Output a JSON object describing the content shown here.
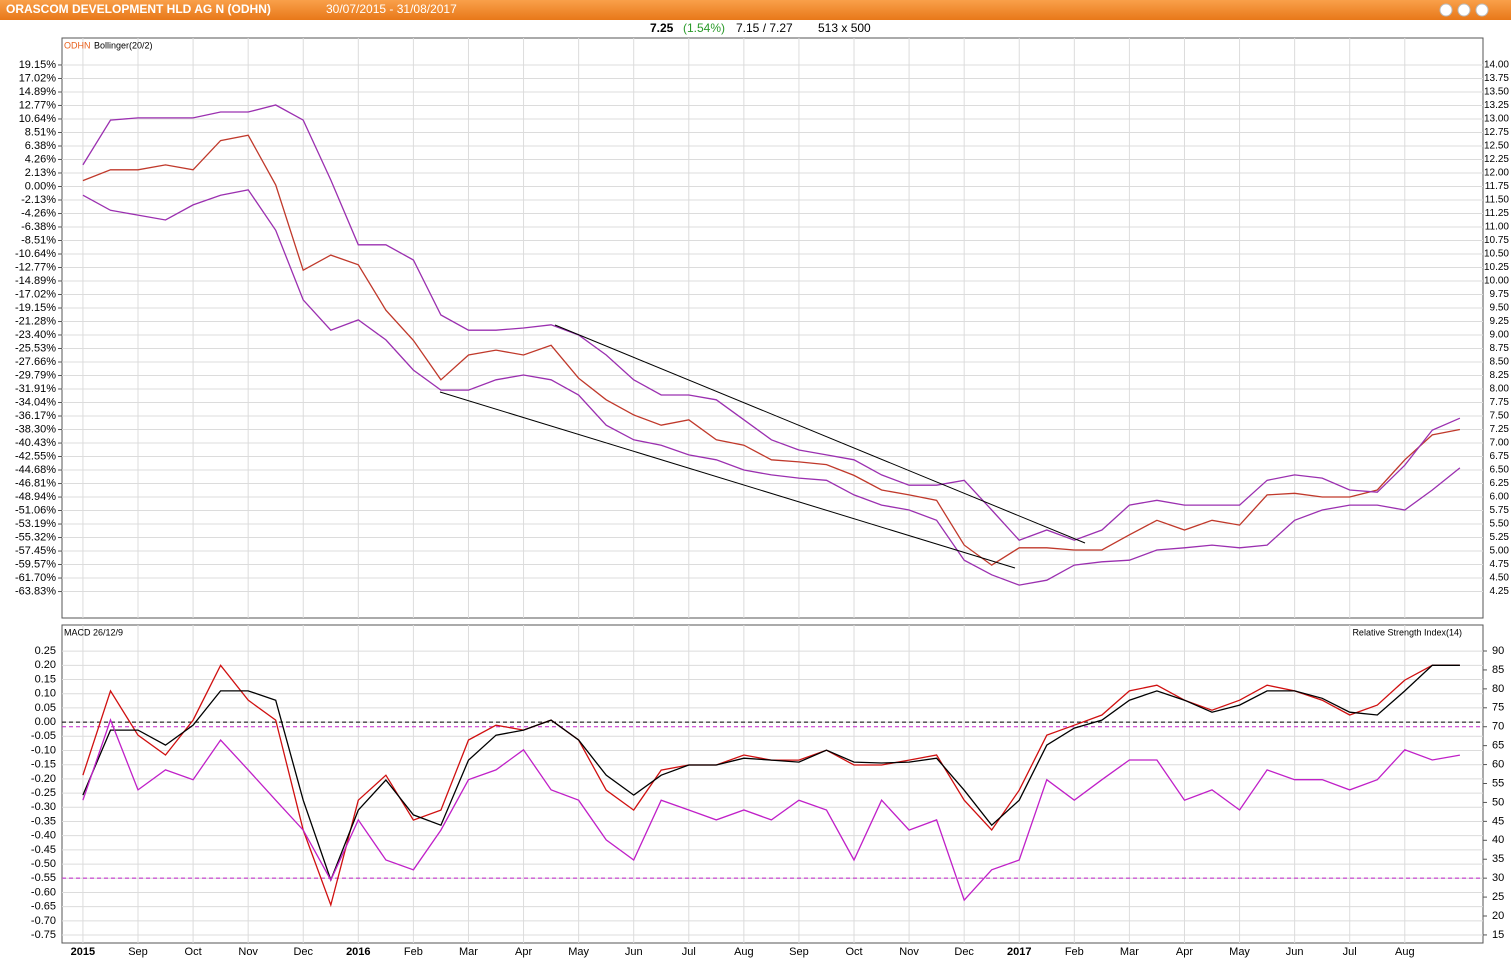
{
  "header": {
    "title": "ORASCOM DEVELOPMENT HLD AG N (ODHN)",
    "range": "30/07/2015 - 31/08/2017"
  },
  "quote": {
    "last": "7.25",
    "change": "(1.54%)",
    "low_high": "7.15 / 7.27",
    "size": "513 x 500"
  },
  "chart_data": [
    {
      "type": "line",
      "label": "ODHN",
      "indicator": "Bollinger(20/2)",
      "grid": true,
      "xlim": [
        -0.38,
        25.42
      ],
      "x": [
        0,
        0.5,
        1,
        1.5,
        2,
        2.5,
        3,
        3.5,
        4,
        4.5,
        5,
        5.5,
        6,
        6.5,
        7,
        7.5,
        8,
        8.5,
        9,
        9.5,
        10,
        10.5,
        11,
        11.5,
        12,
        12.5,
        13,
        13.5,
        14,
        14.5,
        15,
        15.5,
        16,
        16.5,
        17,
        17.5,
        18,
        18.5,
        19,
        19.5,
        20,
        20.5,
        21,
        21.5,
        22,
        22.5,
        23,
        23.5,
        24,
        24.5,
        25
      ],
      "ylim": [
        3.76,
        14.5
      ],
      "yticks": [
        {
          "value": 14,
          "label": "14.00"
        },
        13.75,
        {
          "value": 13.5,
          "label": "13.50"
        },
        13.25,
        {
          "value": 13,
          "label": "13.00"
        },
        12.75,
        {
          "value": 12.5,
          "label": "12.50"
        },
        12.25,
        {
          "value": 12,
          "label": "12.00"
        },
        11.75,
        {
          "value": 11.5,
          "label": "11.50"
        },
        11.25,
        {
          "value": 11,
          "label": "11.00"
        },
        10.75,
        {
          "value": 10.5,
          "label": "10.50"
        },
        10.25,
        {
          "value": 10,
          "label": "10.00"
        },
        9.75,
        {
          "value": 9.5,
          "label": "9.50"
        },
        9.25,
        {
          "value": 9,
          "label": "9.00"
        },
        8.75,
        {
          "value": 8.5,
          "label": "8.50"
        },
        8.25,
        {
          "value": 8,
          "label": "8.00"
        },
        7.75,
        {
          "value": 7.5,
          "label": "7.50"
        },
        7.25,
        {
          "value": 7,
          "label": "7.00"
        },
        6.75,
        {
          "value": 6.5,
          "label": "6.50"
        },
        6.25,
        {
          "value": 6,
          "label": "6.00"
        },
        5.75,
        {
          "value": 5.5,
          "label": "5.50"
        },
        5.25,
        {
          "value": 5,
          "label": "5.00"
        },
        4.75,
        {
          "value": 4.5,
          "label": "4.50"
        },
        4.25
      ],
      "y2lim": [
        -68.0,
        23.4
      ],
      "y2ticks": [
        {
          "value": 19.15,
          "label": "19.15%"
        },
        {
          "value": 17.02,
          "label": "17.02%"
        },
        {
          "value": 14.89,
          "label": "14.89%"
        },
        {
          "value": 12.77,
          "label": "12.77%"
        },
        {
          "value": 10.64,
          "label": "10.64%"
        },
        {
          "value": 8.51,
          "label": "8.51%"
        },
        {
          "value": 6.38,
          "label": "6.38%"
        },
        {
          "value": 4.26,
          "label": "4.26%"
        },
        {
          "value": 2.13,
          "label": "2.13%"
        },
        {
          "value": 0,
          "label": "0.00%"
        },
        {
          "value": -2.13,
          "label": "-2.13%"
        },
        {
          "value": -4.26,
          "label": "-4.26%"
        },
        {
          "value": -6.38,
          "label": "-6.38%"
        },
        {
          "value": -8.51,
          "label": "-8.51%"
        },
        {
          "value": -10.64,
          "label": "-10.64%"
        },
        {
          "value": -12.77,
          "label": "-12.77%"
        },
        {
          "value": -14.89,
          "label": "-14.89%"
        },
        {
          "value": -17.02,
          "label": "-17.02%"
        },
        {
          "value": -19.15,
          "label": "-19.15%"
        },
        {
          "value": -21.28,
          "label": "-21.28%"
        },
        {
          "value": -23.4,
          "label": "-23.40%"
        },
        {
          "value": -25.53,
          "label": "-25.53%"
        },
        {
          "value": -27.66,
          "label": "-27.66%"
        },
        {
          "value": -29.79,
          "label": "-29.79%"
        },
        {
          "value": -31.91,
          "label": "-31.91%"
        },
        {
          "value": -34.04,
          "label": "-34.04%"
        },
        {
          "value": -36.17,
          "label": "-36.17%"
        },
        {
          "value": -38.3,
          "label": "-38.30%"
        },
        {
          "value": -40.43,
          "label": "-40.43%"
        },
        {
          "value": -42.55,
          "label": "-42.55%"
        },
        {
          "value": -44.68,
          "label": "-44.68%"
        },
        {
          "value": -46.81,
          "label": "-46.81%"
        },
        {
          "value": -48.94,
          "label": "-48.94%"
        },
        {
          "value": -51.06,
          "label": "-51.06%"
        },
        {
          "value": -53.19,
          "label": "-53.19%"
        },
        {
          "value": -55.32,
          "label": "-55.32%"
        },
        {
          "value": -57.45,
          "label": "-57.45%"
        },
        {
          "value": -59.57,
          "label": "-59.57%"
        },
        {
          "value": -61.7,
          "label": "-61.70%"
        },
        {
          "value": -63.83,
          "label": "-63.83%"
        }
      ],
      "series": [
        {
          "color": "#c0392b",
          "values": [
            11.86,
            12.06,
            12.06,
            12.15,
            12.06,
            12.6,
            12.7,
            11.78,
            10.2,
            10.48,
            10.3,
            9.46,
            8.9,
            8.17,
            8.63,
            8.72,
            8.63,
            8.81,
            8.2,
            7.8,
            7.52,
            7.33,
            7.43,
            7.06,
            6.96,
            6.69,
            6.65,
            6.6,
            6.4,
            6.13,
            6.04,
            5.94,
            5.11,
            4.74,
            5.06,
            5.06,
            5.02,
            5.02,
            5.3,
            5.57,
            5.39,
            5.57,
            5.48,
            6.04,
            6.07,
            6.0,
            6.0,
            6.13,
            6.69,
            7.15,
            7.25
          ]
        },
        {
          "color": "#9b30b0",
          "values": [
            12.15,
            12.98,
            13.02,
            13.02,
            13.02,
            13.13,
            13.13,
            13.26,
            12.98,
            11.87,
            10.67,
            10.67,
            10.39,
            9.37,
            9.09,
            9.09,
            9.13,
            9.19,
            9.0,
            8.63,
            8.17,
            7.89,
            7.89,
            7.8,
            7.43,
            7.06,
            6.87,
            6.78,
            6.69,
            6.41,
            6.22,
            6.22,
            6.31,
            5.76,
            5.2,
            5.39,
            5.2,
            5.39,
            5.85,
            5.94,
            5.85,
            5.85,
            5.85,
            6.31,
            6.41,
            6.35,
            6.13,
            6.09,
            6.59,
            7.24,
            7.46
          ]
        },
        {
          "color": "#9b30b0",
          "values": [
            11.59,
            11.31,
            11.22,
            11.13,
            11.41,
            11.59,
            11.69,
            10.94,
            9.65,
            9.09,
            9.28,
            8.91,
            8.35,
            7.98,
            7.98,
            8.17,
            8.26,
            8.17,
            7.89,
            7.33,
            7.06,
            6.96,
            6.78,
            6.69,
            6.5,
            6.41,
            6.35,
            6.31,
            6.04,
            5.85,
            5.76,
            5.57,
            4.83,
            4.56,
            4.37,
            4.46,
            4.74,
            4.8,
            4.83,
            5.02,
            5.06,
            5.11,
            5.06,
            5.11,
            5.57,
            5.76,
            5.85,
            5.85,
            5.76,
            6.13,
            6.54
          ]
        }
      ]
    },
    {
      "type": "line",
      "label": "MACD 26/12/9",
      "label_right": "Relative Strength Index(14)",
      "grid": true,
      "xlim": [
        -0.38,
        25.42
      ],
      "xticks": [
        {
          "value": 0,
          "label": "2015"
        },
        {
          "value": 1,
          "label": "Sep"
        },
        {
          "value": 2,
          "label": "Oct"
        },
        {
          "value": 3,
          "label": "Nov"
        },
        {
          "value": 4,
          "label": "Dec"
        },
        {
          "value": 5,
          "label": "2016"
        },
        {
          "value": 6,
          "label": "Feb"
        },
        {
          "value": 7,
          "label": "Mar"
        },
        {
          "value": 8,
          "label": "Apr"
        },
        {
          "value": 9,
          "label": "May"
        },
        {
          "value": 10,
          "label": "Jun"
        },
        {
          "value": 11,
          "label": "Jul"
        },
        {
          "value": 12,
          "label": "Aug"
        },
        {
          "value": 13,
          "label": "Sep"
        },
        {
          "value": 14,
          "label": "Oct"
        },
        {
          "value": 15,
          "label": "Nov"
        },
        {
          "value": 16,
          "label": "Dec"
        },
        {
          "value": 17,
          "label": "2017"
        },
        {
          "value": 18,
          "label": "Feb"
        },
        {
          "value": 19,
          "label": "Mar"
        },
        {
          "value": 20,
          "label": "Apr"
        },
        {
          "value": 21,
          "label": "May"
        },
        {
          "value": 22,
          "label": "Jun"
        },
        {
          "value": 23,
          "label": "Jul"
        },
        {
          "value": 24,
          "label": "Aug"
        }
      ],
      "x": [
        0,
        0.5,
        1,
        1.5,
        2,
        2.5,
        3,
        3.5,
        4,
        4.5,
        5,
        5.5,
        6,
        6.5,
        7,
        7.5,
        8,
        8.5,
        9,
        9.5,
        10,
        10.5,
        11,
        11.5,
        12,
        12.5,
        13,
        13.5,
        14,
        14.5,
        15,
        15.5,
        16,
        16.5,
        17,
        17.5,
        18,
        18.5,
        19,
        19.5,
        20,
        20.5,
        21,
        21.5,
        22,
        22.5,
        23,
        23.5,
        24,
        24.5,
        25
      ],
      "ylim": [
        -0.778,
        0.342
      ],
      "yticks": [
        0.25,
        {
          "value": 0.2,
          "label": "0.20"
        },
        0.15,
        {
          "value": 0.1,
          "label": "0.10"
        },
        0.05,
        {
          "value": 0,
          "label": "0.00"
        },
        -0.05,
        {
          "value": -0.1,
          "label": "-0.10"
        },
        -0.15,
        {
          "value": -0.2,
          "label": "-0.20"
        },
        -0.25,
        {
          "value": -0.3,
          "label": "-0.30"
        },
        -0.35,
        {
          "value": -0.4,
          "label": "-0.40"
        },
        -0.45,
        {
          "value": -0.5,
          "label": "-0.50"
        },
        -0.55,
        {
          "value": -0.6,
          "label": "-0.60"
        },
        -0.65,
        {
          "value": -0.7,
          "label": "-0.70"
        },
        -0.75
      ],
      "y2lim": [
        12.87,
        96.87
      ],
      "y2ticks": [
        90,
        85,
        80,
        75,
        70,
        65,
        60,
        55,
        50,
        45,
        40,
        35,
        30,
        25,
        20,
        15
      ],
      "reference_lines": [
        0
      ],
      "y2_reference_lines": [
        70,
        30
      ],
      "series": [
        {
          "color": "#d01010",
          "values": [
            -0.187,
            0.11,
            -0.046,
            -0.116,
            0.007,
            0.2,
            0.077,
            0.007,
            -0.38,
            -0.644,
            -0.275,
            -0.187,
            -0.345,
            -0.31,
            -0.063,
            -0.011,
            -0.028,
            0.007,
            -0.063,
            -0.24,
            -0.31,
            -0.169,
            -0.151,
            -0.151,
            -0.116,
            -0.134,
            -0.134,
            -0.099,
            -0.151,
            -0.151,
            -0.134,
            -0.116,
            -0.275,
            -0.38,
            -0.24,
            -0.046,
            -0.011,
            0.025,
            0.11,
            0.13,
            0.077,
            0.042,
            0.077,
            0.13,
            0.11,
            0.077,
            0.025,
            0.06,
            0.148,
            0.2,
            0.2
          ]
        },
        {
          "color": "#000000",
          "values": [
            -0.257,
            -0.028,
            -0.028,
            -0.081,
            -0.011,
            0.11,
            0.11,
            0.077,
            -0.275,
            -0.556,
            -0.31,
            -0.204,
            -0.327,
            -0.363,
            -0.134,
            -0.046,
            -0.028,
            0.007,
            -0.063,
            -0.187,
            -0.257,
            -0.187,
            -0.151,
            -0.151,
            -0.127,
            -0.134,
            -0.141,
            -0.099,
            -0.141,
            -0.144,
            -0.141,
            -0.127,
            -0.24,
            -0.363,
            -0.275,
            -0.081,
            -0.021,
            0.007,
            0.077,
            0.11,
            0.077,
            0.035,
            0.06,
            0.11,
            0.11,
            0.084,
            0.035,
            0.025,
            0.11,
            0.2,
            0.2
          ]
        },
        {
          "color": "#c020c8",
          "axis": "y2",
          "values": [
            50.6,
            71.8,
            53.3,
            58.6,
            56,
            66.5,
            58.6,
            50.6,
            42.7,
            29.5,
            45.4,
            34.8,
            32.2,
            42.7,
            56,
            58.6,
            63.9,
            53.3,
            50.6,
            40.1,
            34.8,
            50.6,
            48,
            45.4,
            48,
            45.4,
            50.6,
            48,
            34.8,
            50.6,
            42.7,
            45.4,
            24.2,
            32.2,
            34.8,
            56,
            50.6,
            56,
            61.2,
            61.2,
            50.6,
            53.3,
            48,
            58.6,
            56,
            56,
            53.3,
            56,
            63.9,
            61.2,
            62.5
          ]
        }
      ]
    }
  ]
}
